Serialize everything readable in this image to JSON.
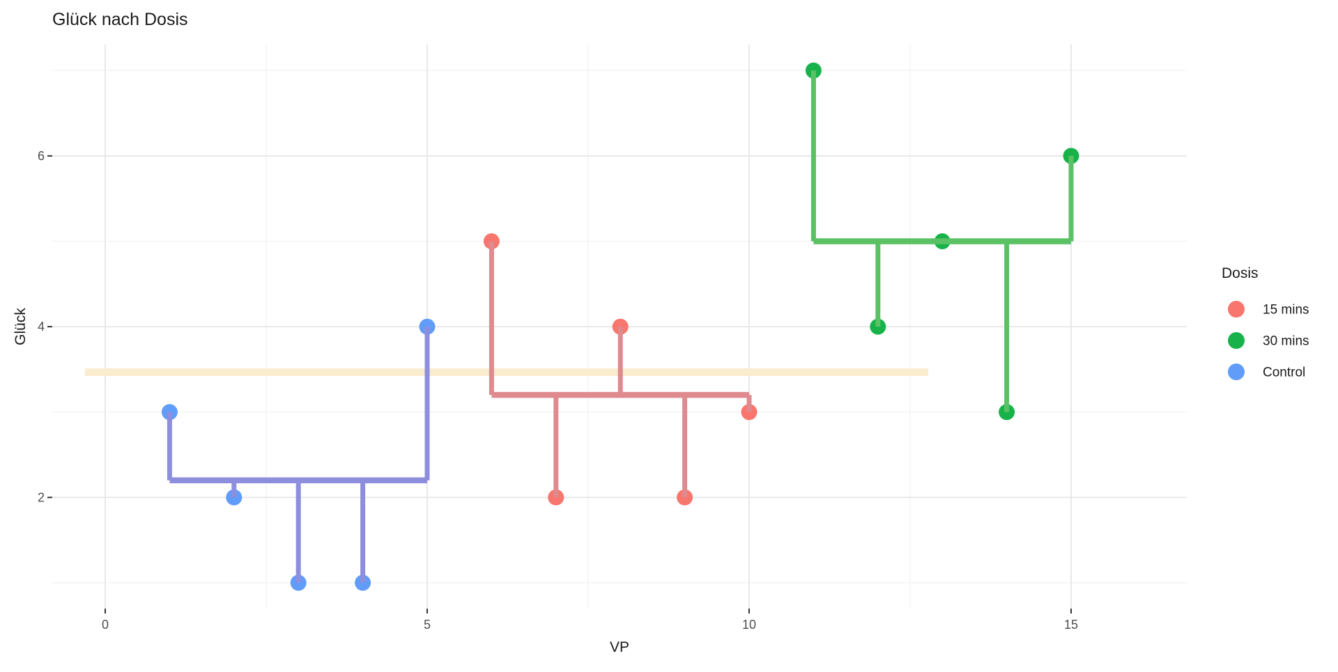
{
  "title": "Glück nach Dosis",
  "axes": {
    "x_label": "VP",
    "y_label": "Glück",
    "x_tick_labels": [
      "0",
      "5",
      "10",
      "15"
    ],
    "y_tick_labels": [
      "2",
      "4",
      "6"
    ]
  },
  "legend": {
    "title": "Dosis",
    "items": [
      {
        "label": "15 mins",
        "color": "#F8766D"
      },
      {
        "label": "30 mins",
        "color": "#17B34A"
      },
      {
        "label": "Control",
        "color": "#609CF8"
      }
    ]
  },
  "colors": {
    "grand_mean_line": "#FAECCF",
    "grid_major": "#E8E8E8",
    "grid_minor": "#F3F3F3",
    "tick_mark": "#333333",
    "tick_text": "#4d4d4d"
  },
  "chart_data": {
    "type": "scatter",
    "title": "Glück nach Dosis",
    "xlabel": "VP",
    "ylabel": "Glück",
    "xlim": [
      -0.8,
      16.8
    ],
    "ylim": [
      0.7,
      7.3
    ],
    "x_ticks_major": [
      0,
      5,
      10,
      15
    ],
    "x_ticks_minor": [
      2.5,
      7.5,
      12.5
    ],
    "y_ticks_major": [
      2,
      4,
      6
    ],
    "y_ticks_minor": [
      1,
      3,
      5,
      7
    ],
    "grid": true,
    "legend_position": "right",
    "grand_mean": 3.4667,
    "groups": [
      {
        "name": "Control",
        "point_color": "#609CF8",
        "line_color": "#8E8EDE",
        "x": [
          1,
          2,
          3,
          4,
          5
        ],
        "y": [
          3,
          2,
          1,
          1,
          4
        ],
        "group_mean": 2.2
      },
      {
        "name": "15 mins",
        "point_color": "#F8766D",
        "line_color": "#DE8A8E",
        "x": [
          6,
          7,
          8,
          9,
          10
        ],
        "y": [
          5,
          2,
          4,
          2,
          3
        ],
        "group_mean": 3.2
      },
      {
        "name": "30 mins",
        "point_color": "#17B34A",
        "line_color": "#5AC164",
        "x": [
          11,
          12,
          13,
          14,
          15
        ],
        "y": [
          7,
          4,
          5,
          3,
          6
        ],
        "group_mean": 5
      }
    ]
  }
}
